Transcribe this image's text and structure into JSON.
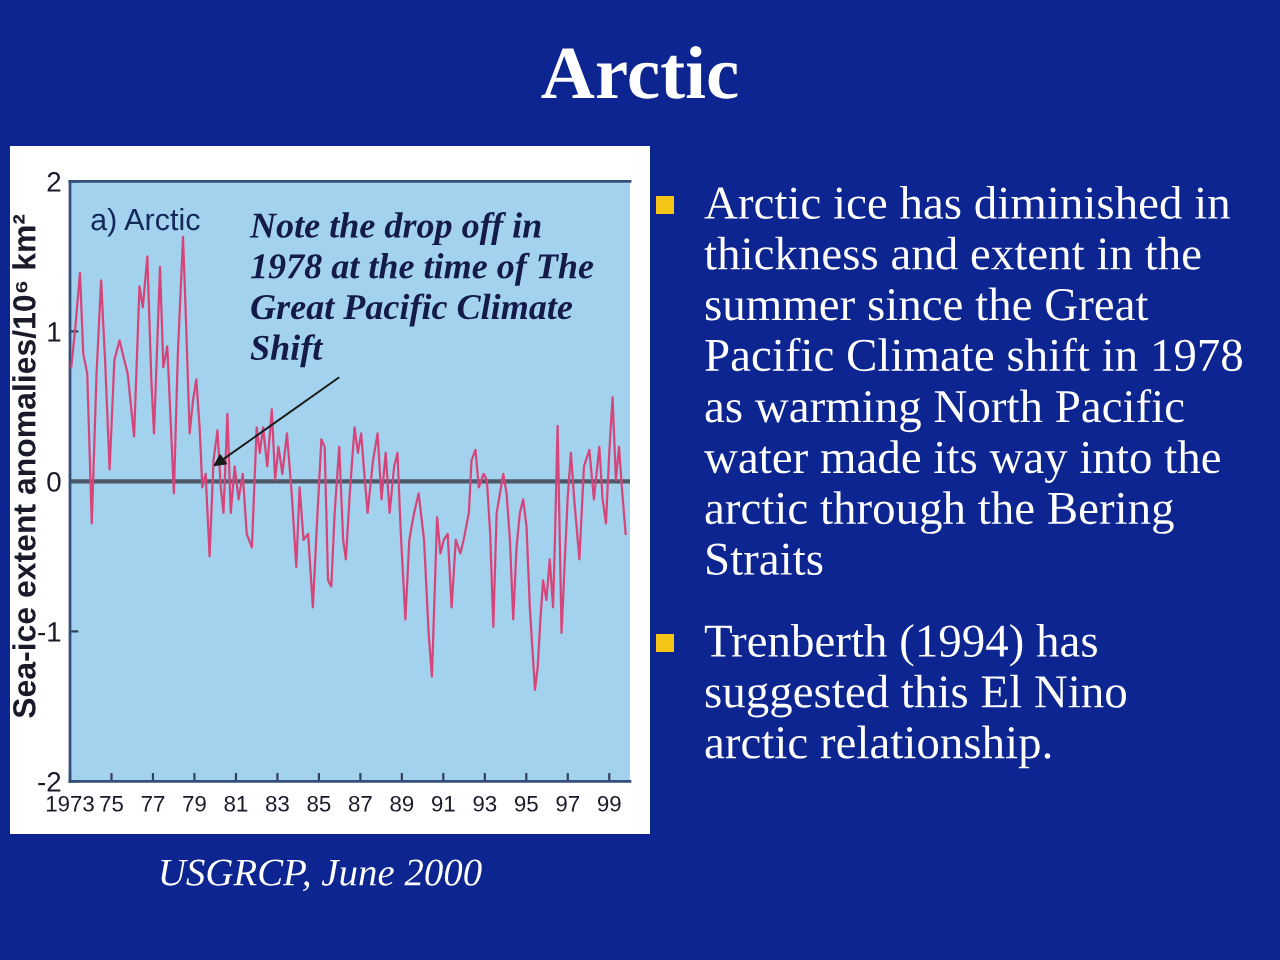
{
  "chart_data": {
    "type": "line",
    "title": "Arctic",
    "ylabel": "Sea-ice extent anomalies/10⁶ km²",
    "x": [
      1973.06,
      1973.26,
      1973.48,
      1973.64,
      1973.83,
      1974.05,
      1974.28,
      1974.5,
      1974.69,
      1974.91,
      1975.14,
      1975.39,
      1975.58,
      1975.78,
      1976.09,
      1976.35,
      1976.51,
      1976.73,
      1976.92,
      1977.05,
      1977.34,
      1977.5,
      1977.69,
      1978.01,
      1978.2,
      1978.45,
      1978.58,
      1978.77,
      1978.93,
      1979.09,
      1979.25,
      1979.38,
      1979.54,
      1979.73,
      1979.92,
      1980.11,
      1980.27,
      1980.4,
      1980.59,
      1980.75,
      1980.94,
      1981.13,
      1981.33,
      1981.52,
      1981.77,
      1982.0,
      1982.15,
      1982.31,
      1982.51,
      1982.73,
      1982.89,
      1983.05,
      1983.24,
      1983.46,
      1983.69,
      1983.91,
      1984.07,
      1984.26,
      1984.48,
      1984.71,
      1984.9,
      1985.12,
      1985.28,
      1985.44,
      1985.6,
      1985.76,
      1985.98,
      1986.17,
      1986.3,
      1986.49,
      1986.72,
      1986.88,
      1987.04,
      1987.19,
      1987.35,
      1987.61,
      1987.83,
      1988.02,
      1988.22,
      1988.41,
      1988.63,
      1988.79,
      1988.95,
      1989.17,
      1989.36,
      1989.59,
      1989.81,
      1990.07,
      1990.29,
      1990.45,
      1990.7,
      1990.86,
      1991.02,
      1991.21,
      1991.4,
      1991.6,
      1991.82,
      1991.98,
      1992.23,
      1992.36,
      1992.55,
      1992.71,
      1992.94,
      1993.1,
      1993.26,
      1993.41,
      1993.57,
      1993.73,
      1993.89,
      1994.05,
      1994.21,
      1994.37,
      1994.53,
      1994.69,
      1994.85,
      1995.01,
      1995.17,
      1995.42,
      1995.55,
      1995.68,
      1995.81,
      1995.97,
      1996.13,
      1996.29,
      1996.38,
      1996.51,
      1996.7,
      1996.99,
      1997.15,
      1997.31,
      1997.56,
      1997.78,
      1998.04,
      1998.26,
      1998.52,
      1998.68,
      1998.84,
      1999.0,
      1999.16,
      1999.32,
      1999.47,
      1999.63,
      1999.79
    ],
    "series": [
      {
        "color": "#d6457a",
        "values": [
          0.76,
          1.03,
          1.39,
          0.85,
          0.72,
          -0.28,
          0.72,
          1.34,
          0.81,
          0.08,
          0.81,
          0.94,
          0.83,
          0.72,
          0.3,
          1.3,
          1.16,
          1.5,
          0.68,
          0.32,
          1.43,
          0.76,
          0.9,
          -0.08,
          0.85,
          1.63,
          1.12,
          0.32,
          0.54,
          0.68,
          0.36,
          -0.04,
          0.05,
          -0.5,
          0.14,
          0.34,
          -0.04,
          -0.21,
          0.45,
          -0.21,
          0.1,
          -0.12,
          0.05,
          -0.35,
          -0.44,
          0.36,
          0.19,
          0.36,
          0.1,
          0.48,
          0.01,
          0.23,
          0.05,
          0.32,
          -0.08,
          -0.57,
          -0.04,
          -0.39,
          -0.35,
          -0.84,
          -0.3,
          0.28,
          0.23,
          -0.66,
          -0.7,
          -0.21,
          0.23,
          -0.39,
          -0.52,
          -0.08,
          0.36,
          0.19,
          0.32,
          0.05,
          -0.21,
          0.14,
          0.32,
          -0.12,
          0.19,
          -0.21,
          0.1,
          0.19,
          -0.35,
          -0.92,
          -0.39,
          -0.21,
          -0.08,
          -0.39,
          -1.01,
          -1.3,
          -0.24,
          -0.48,
          -0.39,
          -0.35,
          -0.84,
          -0.39,
          -0.48,
          -0.39,
          -0.21,
          0.14,
          0.21,
          -0.04,
          0.05,
          0.01,
          -0.35,
          -0.97,
          -0.21,
          -0.08,
          0.05,
          -0.08,
          -0.39,
          -0.92,
          -0.44,
          -0.21,
          -0.12,
          -0.3,
          -0.84,
          -1.39,
          -1.24,
          -0.92,
          -0.66,
          -0.79,
          -0.52,
          -0.84,
          -0.39,
          0.37,
          -1.01,
          -0.12,
          0.19,
          -0.12,
          -0.52,
          0.1,
          0.21,
          -0.12,
          0.23,
          -0.12,
          -0.28,
          0.19,
          0.56,
          0.01,
          0.23,
          -0.08,
          -0.35
        ]
      }
    ],
    "xlim": [
      1973,
      2000
    ],
    "xticks": [
      1973,
      {
        "value": 1975,
        "label": "75"
      },
      {
        "value": 1977,
        "label": "77"
      },
      {
        "value": 1979,
        "label": "79"
      },
      {
        "value": 1981,
        "label": "81"
      },
      {
        "value": 1983,
        "label": "83"
      },
      {
        "value": 1985,
        "label": "85"
      },
      {
        "value": 1987,
        "label": "87"
      },
      {
        "value": 1989,
        "label": "89"
      },
      {
        "value": 1991,
        "label": "91"
      },
      {
        "value": 1993,
        "label": "93"
      },
      {
        "value": 1995,
        "label": "95"
      },
      {
        "value": 1997,
        "label": "97"
      },
      {
        "value": 1999,
        "label": "99"
      }
    ],
    "ylim": [
      -2,
      2
    ],
    "yticks": [
      -2,
      -1,
      0,
      1,
      2
    ],
    "ref_lines": [
      {
        "axis": "y",
        "value": 0,
        "color": "#4d5866"
      }
    ],
    "line_style": "solid",
    "annotations": [
      "a) Arctic",
      {
        "text": "Note the drop off in 1978 at the time of The Great Pacific Climate Shift",
        "x": 1979.9,
        "y": 0.1
      },
      "Arctic ice has diminished in thickness and extent in the summer since the Great Pacific Climate shift in 1978 as warming North Pacific water made its way into the arctic through the Bering Straits",
      "Trenberth (1994) has suggested this El Nino arctic relationship.",
      "USGRCP, June 2000"
    ]
  }
}
